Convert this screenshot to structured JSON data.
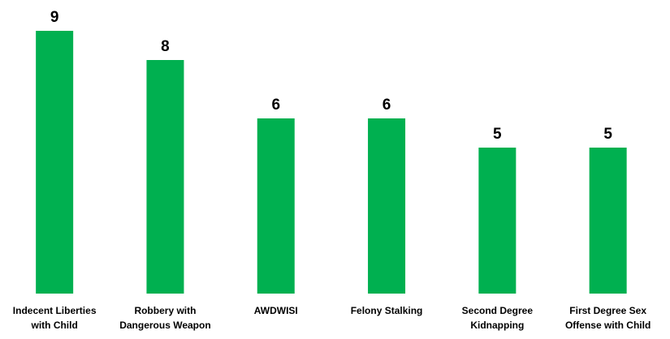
{
  "chart_data": {
    "type": "bar",
    "categories": [
      [
        "Indecent Liberties",
        "with Child"
      ],
      [
        "Robbery with",
        "Dangerous Weapon"
      ],
      [
        "AWDWISI"
      ],
      [
        "Felony Stalking"
      ],
      [
        "Second Degree",
        "Kidnapping"
      ],
      [
        "First Degree Sex",
        "Offense with Child"
      ]
    ],
    "values": [
      9,
      8,
      6,
      6,
      5,
      5
    ],
    "color": "#00b050"
  }
}
